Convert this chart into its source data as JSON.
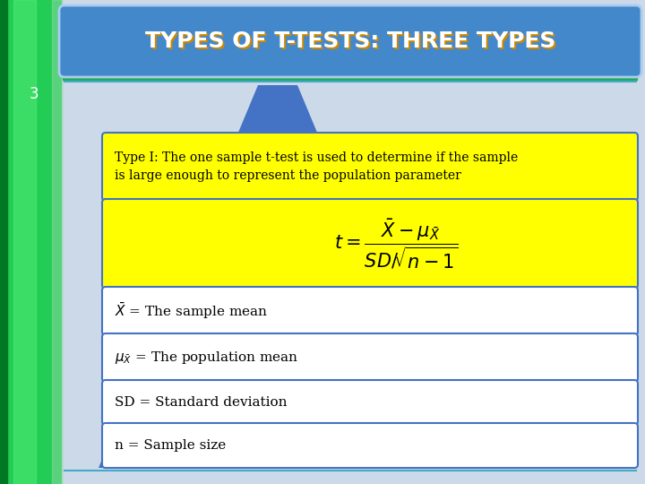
{
  "title": "TYPES OF T-TESTS: THREE TYPES",
  "slide_number": "3",
  "bg_color": "#ccd9e8",
  "sidebar_color": "#22cc55",
  "sidebar_dark": "#006622",
  "title_bg": "#4488cc",
  "title_text_color": "#ffffff",
  "title_shadow": "#cc8800",
  "triangle_color": "#4472c4",
  "box1_bg": "#ffff00",
  "box1_border": "#4472c4",
  "box1_text": "Type I: The one sample t-test is used to determine if the sample\nis large enough to represent the population parameter",
  "box2_bg": "#ffff00",
  "box2_border": "#4472c4",
  "box3_bg": "#ffffff",
  "box3_border": "#4472c4",
  "box3_text": "$\\bar{X}$ = The sample mean",
  "box4_bg": "#ffffff",
  "box4_border": "#4472c4",
  "box4_text": "$\\mu_{\\bar{X}}$ = The population mean",
  "box5_bg": "#ffffff",
  "box5_border": "#4472c4",
  "box5_text": "SD = Standard deviation",
  "box6_bg": "#ffffff",
  "box6_border": "#4472c4",
  "box6_text": "n = Sample size",
  "line_color": "#22aa55",
  "line_color2": "#4472c4",
  "separator_color": "#4472c4"
}
